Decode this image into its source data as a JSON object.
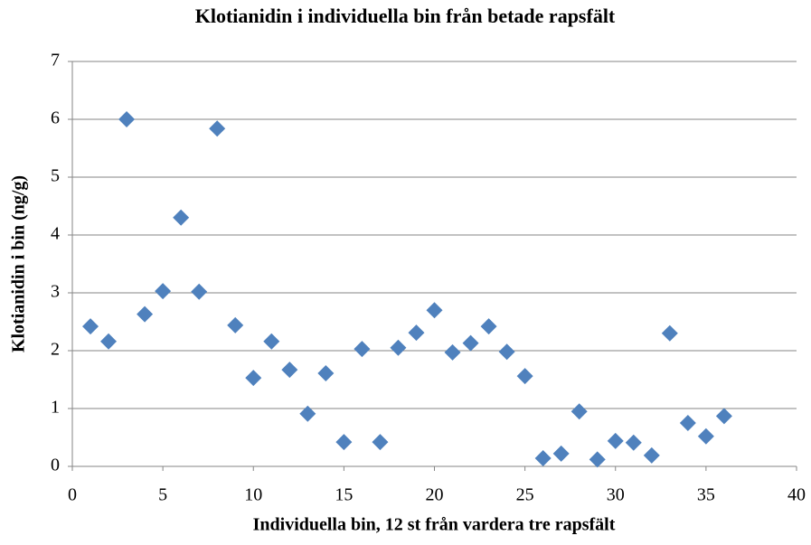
{
  "chart_data": {
    "type": "scatter",
    "title": "Klotianidin i individuella bin från betade rapsfält",
    "xlabel": "Individuella bin, 12 st från vardera tre rapsfält",
    "ylabel": "Klotianidin i bin (ng/g)",
    "x": [
      1,
      2,
      3,
      4,
      5,
      6,
      7,
      8,
      9,
      10,
      11,
      12,
      13,
      14,
      15,
      16,
      17,
      18,
      19,
      20,
      21,
      22,
      23,
      24,
      25,
      26,
      27,
      28,
      29,
      30,
      31,
      32,
      33,
      34,
      35,
      36
    ],
    "values": [
      2.42,
      2.16,
      6.0,
      2.63,
      3.03,
      4.3,
      3.02,
      5.84,
      2.44,
      1.53,
      2.16,
      1.67,
      0.91,
      1.61,
      0.42,
      2.03,
      0.42,
      2.05,
      2.31,
      2.7,
      1.97,
      2.13,
      2.42,
      1.98,
      1.56,
      0.14,
      0.22,
      0.95,
      0.12,
      0.44,
      0.41,
      0.19,
      2.3,
      0.75,
      0.52,
      0.87
    ],
    "color": "#4f81bd",
    "xlim": [
      0,
      40
    ],
    "xticks": [
      0,
      5,
      10,
      15,
      20,
      25,
      30,
      35,
      40
    ],
    "ylim": [
      0,
      7
    ],
    "yticks": [
      0,
      1,
      2,
      3,
      4,
      5,
      6,
      7
    ],
    "grid": true
  }
}
